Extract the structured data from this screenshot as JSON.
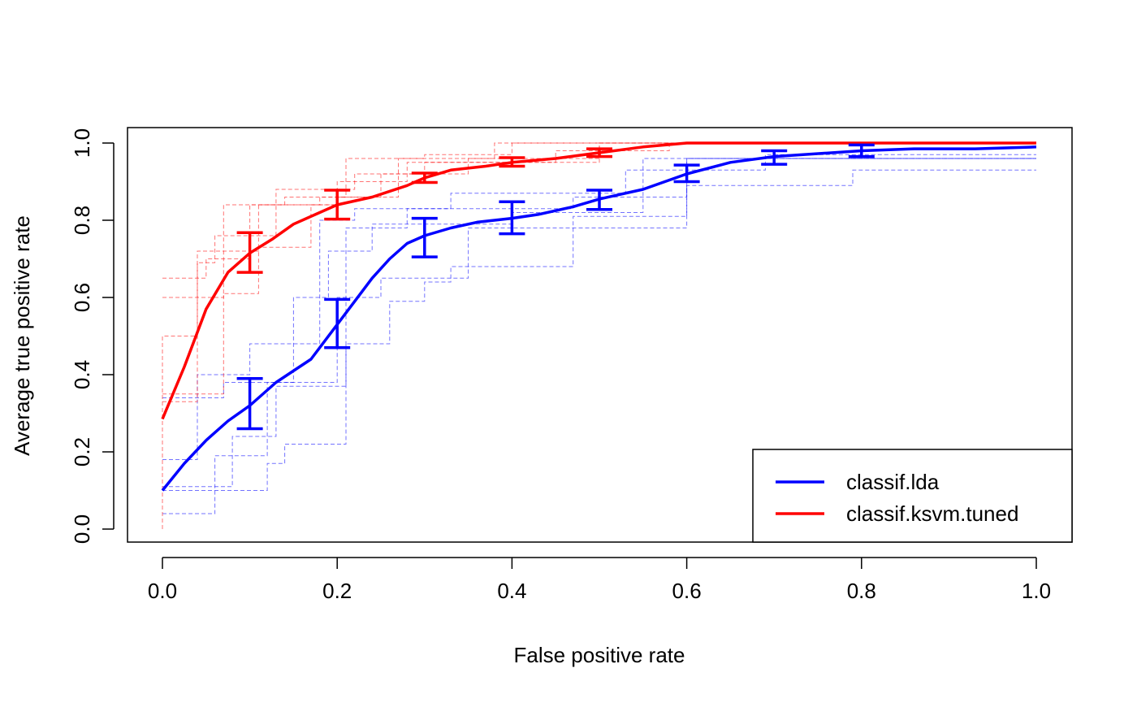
{
  "chart_data": {
    "type": "line",
    "xlabel": "False positive rate",
    "ylabel": "Average true positive rate",
    "xlim": [
      0,
      1
    ],
    "ylim": [
      0,
      1
    ],
    "x_ticks": [
      "0.0",
      "0.2",
      "0.4",
      "0.6",
      "0.8",
      "1.0"
    ],
    "y_ticks": [
      "0.0",
      "0.2",
      "0.4",
      "0.6",
      "0.8",
      "1.0"
    ],
    "grid": false,
    "legend_position": "bottom-right",
    "series": [
      {
        "name": "classif.lda",
        "color": "#0000ff",
        "x": [
          0.0,
          0.025,
          0.05,
          0.075,
          0.1,
          0.13,
          0.17,
          0.2,
          0.22,
          0.24,
          0.26,
          0.28,
          0.3,
          0.33,
          0.36,
          0.4,
          0.43,
          0.47,
          0.5,
          0.55,
          0.6,
          0.65,
          0.7,
          0.8,
          0.86,
          0.93,
          1.0
        ],
        "y": [
          0.1,
          0.17,
          0.23,
          0.28,
          0.32,
          0.38,
          0.44,
          0.53,
          0.59,
          0.65,
          0.7,
          0.74,
          0.76,
          0.78,
          0.795,
          0.805,
          0.815,
          0.835,
          0.855,
          0.88,
          0.92,
          0.95,
          0.965,
          0.98,
          0.985,
          0.985,
          0.99
        ],
        "error_bars": [
          {
            "x": 0.1,
            "low": 0.26,
            "high": 0.39
          },
          {
            "x": 0.2,
            "low": 0.47,
            "high": 0.595
          },
          {
            "x": 0.3,
            "low": 0.705,
            "high": 0.805
          },
          {
            "x": 0.4,
            "low": 0.765,
            "high": 0.848
          },
          {
            "x": 0.5,
            "low": 0.828,
            "high": 0.878
          },
          {
            "x": 0.6,
            "low": 0.9,
            "high": 0.943
          },
          {
            "x": 0.7,
            "low": 0.945,
            "high": 0.98
          },
          {
            "x": 0.8,
            "low": 0.965,
            "high": 0.995
          }
        ],
        "fold_curves": [
          [
            [
              0,
              0.04
            ],
            [
              0.06,
              0.04
            ],
            [
              0.06,
              0.19
            ],
            [
              0.12,
              0.19
            ],
            [
              0.12,
              0.38
            ],
            [
              0.2,
              0.38
            ],
            [
              0.2,
              0.6
            ],
            [
              0.25,
              0.6
            ],
            [
              0.25,
              0.65
            ],
            [
              0.35,
              0.65
            ],
            [
              0.35,
              0.78
            ],
            [
              0.6,
              0.78
            ],
            [
              0.6,
              0.89
            ],
            [
              0.79,
              0.89
            ],
            [
              0.79,
              0.93
            ],
            [
              1.0,
              0.93
            ]
          ],
          [
            [
              0,
              0.11
            ],
            [
              0.08,
              0.11
            ],
            [
              0.08,
              0.24
            ],
            [
              0.13,
              0.24
            ],
            [
              0.13,
              0.37
            ],
            [
              0.21,
              0.37
            ],
            [
              0.21,
              0.78
            ],
            [
              0.28,
              0.78
            ],
            [
              0.28,
              0.83
            ],
            [
              0.47,
              0.83
            ],
            [
              0.47,
              0.86
            ],
            [
              0.6,
              0.86
            ],
            [
              0.6,
              0.96
            ],
            [
              1.0,
              0.96
            ]
          ],
          [
            [
              0,
              0.18
            ],
            [
              0.04,
              0.18
            ],
            [
              0.04,
              0.4
            ],
            [
              0.1,
              0.4
            ],
            [
              0.1,
              0.48
            ],
            [
              0.18,
              0.48
            ],
            [
              0.18,
              0.8
            ],
            [
              0.22,
              0.8
            ],
            [
              0.22,
              0.83
            ],
            [
              0.33,
              0.83
            ],
            [
              0.33,
              0.87
            ],
            [
              0.53,
              0.87
            ],
            [
              0.53,
              0.93
            ],
            [
              0.69,
              0.93
            ],
            [
              0.69,
              0.97
            ],
            [
              1.0,
              0.97
            ]
          ],
          [
            [
              0,
              0.34
            ],
            [
              0.07,
              0.34
            ],
            [
              0.07,
              0.38
            ],
            [
              0.15,
              0.38
            ],
            [
              0.15,
              0.6
            ],
            [
              0.19,
              0.6
            ],
            [
              0.19,
              0.72
            ],
            [
              0.24,
              0.72
            ],
            [
              0.24,
              0.79
            ],
            [
              0.4,
              0.79
            ],
            [
              0.4,
              0.82
            ],
            [
              0.55,
              0.82
            ],
            [
              0.55,
              0.96
            ],
            [
              1.0,
              0.96
            ]
          ],
          [
            [
              0,
              0.1
            ],
            [
              0.12,
              0.1
            ],
            [
              0.12,
              0.17
            ],
            [
              0.14,
              0.17
            ],
            [
              0.14,
              0.22
            ],
            [
              0.21,
              0.22
            ],
            [
              0.21,
              0.48
            ],
            [
              0.26,
              0.48
            ],
            [
              0.26,
              0.59
            ],
            [
              0.3,
              0.59
            ],
            [
              0.3,
              0.64
            ],
            [
              0.33,
              0.64
            ],
            [
              0.33,
              0.68
            ],
            [
              0.47,
              0.68
            ],
            [
              0.47,
              0.81
            ],
            [
              0.6,
              0.81
            ],
            [
              0.6,
              0.96
            ],
            [
              1.0,
              0.96
            ]
          ]
        ]
      },
      {
        "name": "classif.ksvm.tuned",
        "color": "#ff0000",
        "x": [
          0.0,
          0.025,
          0.05,
          0.075,
          0.1,
          0.125,
          0.15,
          0.175,
          0.2,
          0.24,
          0.28,
          0.3,
          0.33,
          0.37,
          0.4,
          0.45,
          0.5,
          0.55,
          0.6,
          0.65,
          0.7,
          0.8,
          0.9,
          1.0
        ],
        "y": [
          0.285,
          0.42,
          0.57,
          0.665,
          0.715,
          0.75,
          0.79,
          0.815,
          0.84,
          0.86,
          0.89,
          0.91,
          0.93,
          0.94,
          0.95,
          0.96,
          0.975,
          0.99,
          1.0,
          1.0,
          1.0,
          1.0,
          1.0,
          1.0
        ],
        "error_bars": [
          {
            "x": 0.1,
            "low": 0.665,
            "high": 0.768
          },
          {
            "x": 0.2,
            "low": 0.803,
            "high": 0.878
          },
          {
            "x": 0.3,
            "low": 0.898,
            "high": 0.922
          },
          {
            "x": 0.4,
            "low": 0.94,
            "high": 0.962
          },
          {
            "x": 0.5,
            "low": 0.965,
            "high": 0.985
          }
        ],
        "fold_curves": [
          [
            [
              0,
              0.0
            ],
            [
              0,
              0.5
            ],
            [
              0.04,
              0.5
            ],
            [
              0.04,
              0.72
            ],
            [
              0.11,
              0.72
            ],
            [
              0.11,
              0.84
            ],
            [
              0.2,
              0.84
            ],
            [
              0.2,
              0.86
            ],
            [
              0.27,
              0.86
            ],
            [
              0.27,
              0.96
            ],
            [
              0.38,
              0.96
            ],
            [
              0.38,
              1.0
            ],
            [
              1.0,
              1.0
            ]
          ],
          [
            [
              0,
              0.33
            ],
            [
              0.04,
              0.33
            ],
            [
              0.04,
              0.69
            ],
            [
              0.06,
              0.69
            ],
            [
              0.06,
              0.76
            ],
            [
              0.13,
              0.76
            ],
            [
              0.13,
              0.88
            ],
            [
              0.22,
              0.88
            ],
            [
              0.22,
              0.92
            ],
            [
              0.3,
              0.92
            ],
            [
              0.3,
              0.95
            ],
            [
              0.5,
              0.95
            ],
            [
              0.5,
              1.0
            ],
            [
              1.0,
              1.0
            ]
          ],
          [
            [
              0,
              0.6
            ],
            [
              0.07,
              0.6
            ],
            [
              0.07,
              0.84
            ],
            [
              0.14,
              0.84
            ],
            [
              0.14,
              0.86
            ],
            [
              0.21,
              0.86
            ],
            [
              0.21,
              0.96
            ],
            [
              0.3,
              0.96
            ],
            [
              0.3,
              0.97
            ],
            [
              0.4,
              0.97
            ],
            [
              0.4,
              1.0
            ],
            [
              1.0,
              1.0
            ]
          ],
          [
            [
              0,
              0.65
            ],
            [
              0.05,
              0.65
            ],
            [
              0.05,
              0.7
            ],
            [
              0.1,
              0.7
            ],
            [
              0.1,
              0.84
            ],
            [
              0.18,
              0.84
            ],
            [
              0.18,
              0.86
            ],
            [
              0.25,
              0.86
            ],
            [
              0.25,
              0.92
            ],
            [
              0.35,
              0.92
            ],
            [
              0.35,
              0.96
            ],
            [
              0.5,
              0.96
            ],
            [
              0.5,
              1.0
            ],
            [
              1.0,
              1.0
            ]
          ],
          [
            [
              0,
              0.35
            ],
            [
              0.07,
              0.35
            ],
            [
              0.07,
              0.61
            ],
            [
              0.11,
              0.61
            ],
            [
              0.11,
              0.73
            ],
            [
              0.17,
              0.73
            ],
            [
              0.17,
              0.84
            ],
            [
              0.2,
              0.84
            ],
            [
              0.2,
              0.9
            ],
            [
              0.28,
              0.9
            ],
            [
              0.28,
              0.95
            ],
            [
              0.45,
              0.95
            ],
            [
              0.45,
              0.98
            ],
            [
              0.58,
              0.98
            ],
            [
              0.58,
              1.0
            ],
            [
              1.0,
              1.0
            ]
          ]
        ]
      }
    ]
  }
}
